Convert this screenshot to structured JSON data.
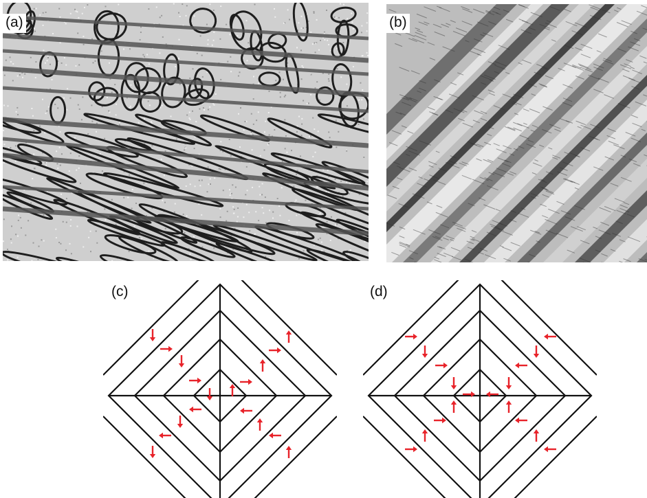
{
  "figure": {
    "panels": [
      {
        "label": "(a)",
        "kind": "micrograph",
        "description_key": "domain-pattern-stripes-and-loops"
      },
      {
        "label": "(b)",
        "kind": "micrograph",
        "description_key": "diagonal-lamellar-domains"
      },
      {
        "label": "(c)",
        "kind": "schematic",
        "arrow_pattern": "circulating"
      },
      {
        "label": "(d)",
        "kind": "schematic",
        "arrow_pattern": "head-to-head"
      }
    ],
    "colors": {
      "lines": "#111111",
      "arrows": "#e8232a",
      "micrograph_light": "#d9d9d9",
      "micrograph_dark": "#2a2a2a"
    }
  }
}
